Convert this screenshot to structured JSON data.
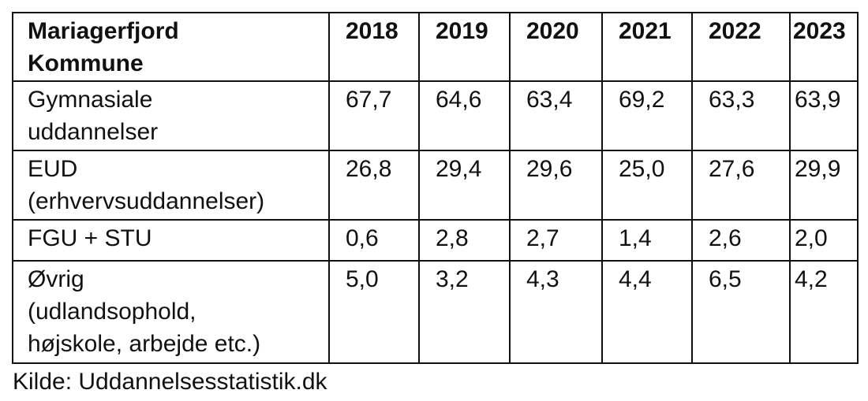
{
  "table": {
    "header": {
      "label": "Mariagerfjord Kommune",
      "years": [
        "2018",
        "2019",
        "2020",
        "2021",
        "2022",
        "2023"
      ]
    },
    "rows": [
      {
        "label": "Gymnasiale uddannelser",
        "values": [
          "67,7",
          "64,6",
          "63,4",
          "69,2",
          "63,3",
          "63,9"
        ]
      },
      {
        "label": "EUD (erhvervsuddannelser)",
        "values": [
          "26,8",
          "29,4",
          "29,6",
          "25,0",
          "27,6",
          "29,9"
        ]
      },
      {
        "label": "FGU + STU",
        "values": [
          "0,6",
          "2,8",
          "2,7",
          "1,4",
          "2,6",
          "2,0"
        ]
      },
      {
        "label": "Øvrig (udlandsophold, højskole, arbejde etc.)",
        "values": [
          "5,0",
          "3,2",
          "4,3",
          "4,4",
          "6,5",
          "4,2"
        ]
      }
    ]
  },
  "label_lines": {
    "header": [
      "Mariagerfjord",
      "Kommune"
    ],
    "rows": [
      [
        "Gymnasiale",
        "uddannelser"
      ],
      [
        "EUD",
        "(erhvervsuddannelser)"
      ],
      [
        "FGU + STU"
      ],
      [
        "Øvrig",
        "(udlandsophold,",
        "højskole, arbejde etc.)"
      ]
    ]
  },
  "caption": "Kilde: Uddannelsesstatistik.dk"
}
